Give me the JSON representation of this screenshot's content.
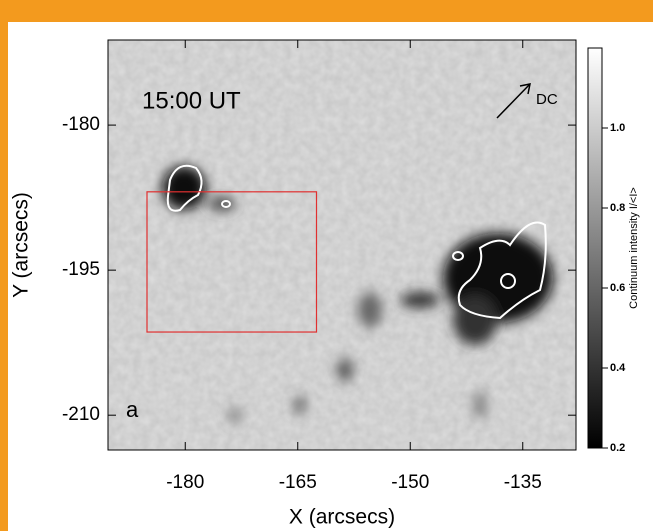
{
  "chart_data": {
    "type": "image",
    "xlabel": "X (arcsecs)",
    "ylabel": "Y (arcsecs)",
    "xlim": [
      -190.3,
      -127.9
    ],
    "ylim": [
      -213.6,
      -171.2
    ],
    "xticks": [
      -180,
      -165,
      -150,
      -135
    ],
    "yticks": [
      -180,
      -195,
      -210
    ],
    "annotations": [
      "15:00 UT",
      "DC",
      "a"
    ],
    "colorbar": {
      "label": "Continuum intensity I/<I>",
      "lim": [
        0.2,
        1.2
      ],
      "ticks": [
        {
          "value": 1,
          "label": "1.0"
        },
        0.8,
        0.6,
        0.4,
        0.2
      ]
    },
    "box": {
      "color": "#e03030",
      "x": [
        -185.1,
        -162.5
      ],
      "y": [
        -201.4,
        -186.9
      ]
    }
  }
}
